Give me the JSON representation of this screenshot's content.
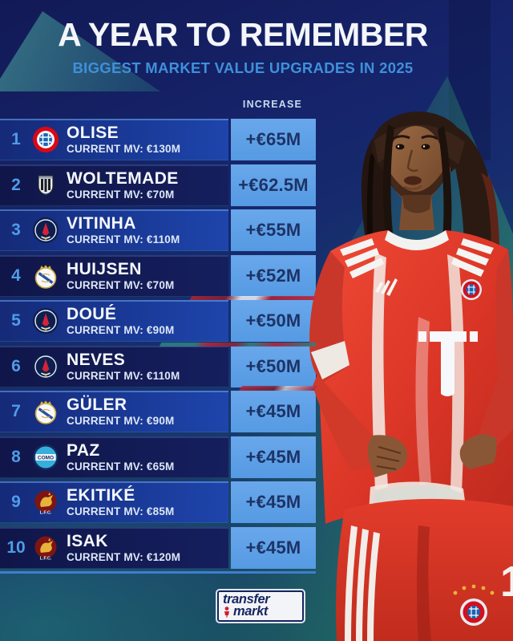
{
  "header": {
    "title": "A YEAR TO REMEMBER",
    "subtitle": "BIGGEST MARKET VALUE UPGRADES IN 2025"
  },
  "table": {
    "increase_header": "INCREASE",
    "rows": [
      {
        "rank": "1",
        "player": "OLISE",
        "club_badge": "bayern-munich-badge",
        "current_mv": "CURRENT MV: €130M",
        "increase": "+€65M"
      },
      {
        "rank": "2",
        "player": "WOLTEMADE",
        "club_badge": "newcastle-united-badge",
        "current_mv": "CURRENT MV: €70M",
        "increase": "+€62.5M"
      },
      {
        "rank": "3",
        "player": "VITINHA",
        "club_badge": "psg-badge",
        "current_mv": "CURRENT MV: €110M",
        "increase": "+€55M"
      },
      {
        "rank": "4",
        "player": "HUIJSEN",
        "club_badge": "real-madrid-badge",
        "current_mv": "CURRENT MV: €70M",
        "increase": "+€52M"
      },
      {
        "rank": "5",
        "player": "DOUÉ",
        "club_badge": "psg-badge",
        "current_mv": "CURRENT MV: €90M",
        "increase": "+€50M"
      },
      {
        "rank": "6",
        "player": "NEVES",
        "club_badge": "psg-badge",
        "current_mv": "CURRENT MV: €110M",
        "increase": "+€50M"
      },
      {
        "rank": "7",
        "player": "GÜLER",
        "club_badge": "real-madrid-badge",
        "current_mv": "CURRENT MV: €90M",
        "increase": "+€45M"
      },
      {
        "rank": "8",
        "player": "PAZ",
        "club_badge": "como-badge",
        "current_mv": "CURRENT MV: €65M",
        "increase": "+€45M"
      },
      {
        "rank": "9",
        "player": "EKITIKÉ",
        "club_badge": "liverpool-badge",
        "current_mv": "CURRENT MV: €85M",
        "increase": "+€45M"
      },
      {
        "rank": "10",
        "player": "ISAK",
        "club_badge": "liverpool-badge",
        "current_mv": "CURRENT MV: €120M",
        "increase": "+€45M"
      }
    ]
  },
  "footer": {
    "logo_line1": "transfer",
    "logo_line2": "markt"
  },
  "colors": {
    "background_navy": "#16246b",
    "subtitle_blue": "#3f90da",
    "row_blue": "#1a3a98",
    "row_dark_navy": "#151f5e",
    "rank_blue": "#4f9ce8",
    "increase_box_blue": "#5f9fe6",
    "increase_text_navy": "#1d3365",
    "triangle_green": "#52c884",
    "accent_red": "#b0283c",
    "jersey_red": "#e03b2e"
  }
}
